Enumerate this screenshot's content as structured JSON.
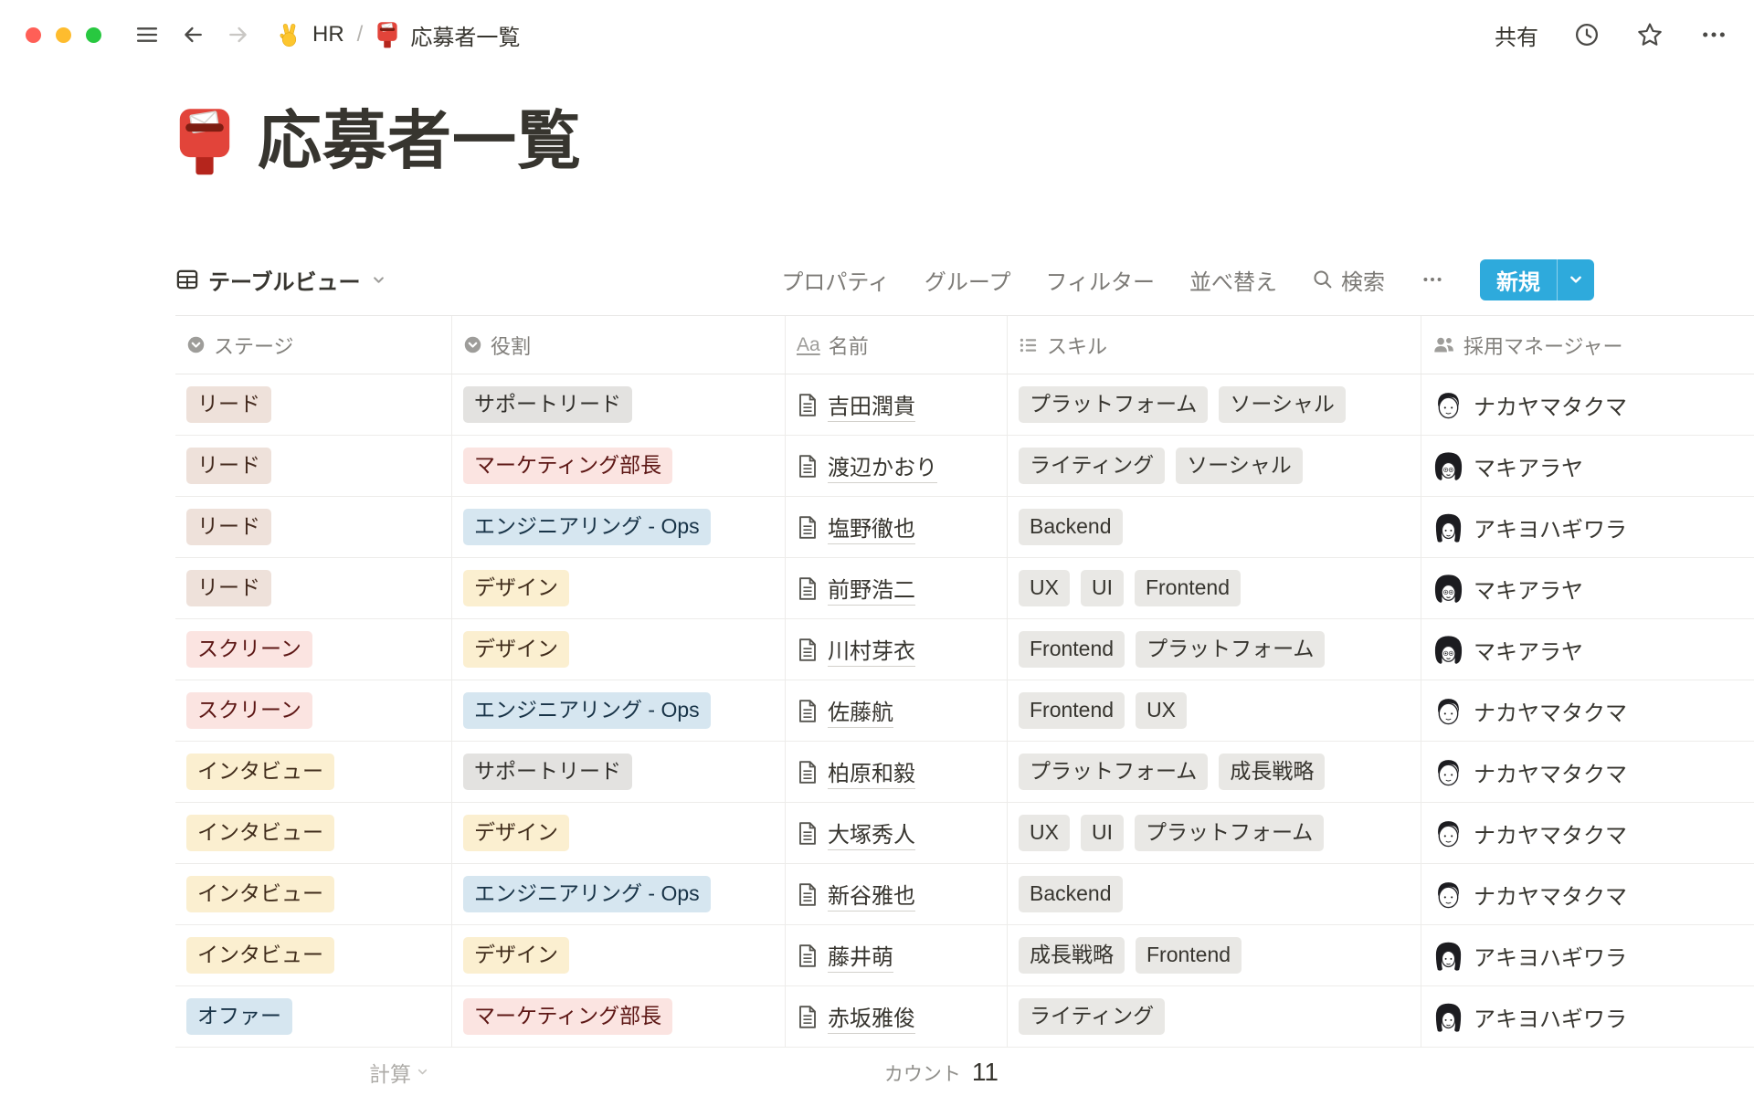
{
  "topbar": {
    "breadcrumb": {
      "workspace": "HR",
      "separator": "/",
      "page": "応募者一覧"
    },
    "share_label": "共有"
  },
  "page": {
    "title": "応募者一覧"
  },
  "toolbar": {
    "view_label": "テーブルビュー",
    "menu": [
      "プロパティ",
      "グループ",
      "フィルター",
      "並べ替え"
    ],
    "search_label": "検索",
    "new_label": "新規"
  },
  "table": {
    "columns": [
      {
        "label": "ステージ",
        "icon": "select-icon"
      },
      {
        "label": "役割",
        "icon": "select-icon"
      },
      {
        "label": "名前",
        "icon": "title-icon"
      },
      {
        "label": "スキル",
        "icon": "multi-select-icon"
      },
      {
        "label": "採用マネージャー",
        "icon": "people-icon"
      }
    ],
    "rows": [
      {
        "stage": {
          "label": "リード",
          "color": "brown"
        },
        "role": {
          "label": "サポートリード",
          "color": "gray"
        },
        "name": "吉田潤貴",
        "skills": [
          "プラットフォーム",
          "ソーシャル"
        ],
        "manager": {
          "name": "ナカヤマタクマ",
          "avatar": "takuma"
        }
      },
      {
        "stage": {
          "label": "リード",
          "color": "brown"
        },
        "role": {
          "label": "マーケティング部長",
          "color": "red"
        },
        "name": "渡辺かおり",
        "skills": [
          "ライティング",
          "ソーシャル"
        ],
        "manager": {
          "name": "マキアラヤ",
          "avatar": "araya"
        }
      },
      {
        "stage": {
          "label": "リード",
          "color": "brown"
        },
        "role": {
          "label": "エンジニアリング - Ops",
          "color": "blue"
        },
        "name": "塩野徹也",
        "skills": [
          "Backend"
        ],
        "manager": {
          "name": "アキヨハギワラ",
          "avatar": "hagiwara"
        }
      },
      {
        "stage": {
          "label": "リード",
          "color": "brown"
        },
        "role": {
          "label": "デザイン",
          "color": "yellow"
        },
        "name": "前野浩二",
        "skills": [
          "UX",
          "UI",
          "Frontend"
        ],
        "manager": {
          "name": "マキアラヤ",
          "avatar": "araya"
        }
      },
      {
        "stage": {
          "label": "スクリーン",
          "color": "red"
        },
        "role": {
          "label": "デザイン",
          "color": "yellow"
        },
        "name": "川村芽衣",
        "skills": [
          "Frontend",
          "プラットフォーム"
        ],
        "manager": {
          "name": "マキアラヤ",
          "avatar": "araya"
        }
      },
      {
        "stage": {
          "label": "スクリーン",
          "color": "red"
        },
        "role": {
          "label": "エンジニアリング - Ops",
          "color": "blue"
        },
        "name": "佐藤航",
        "skills": [
          "Frontend",
          "UX"
        ],
        "manager": {
          "name": "ナカヤマタクマ",
          "avatar": "takuma"
        }
      },
      {
        "stage": {
          "label": "インタビュー",
          "color": "yellow"
        },
        "role": {
          "label": "サポートリード",
          "color": "gray"
        },
        "name": "柏原和毅",
        "skills": [
          "プラットフォーム",
          "成長戦略"
        ],
        "manager": {
          "name": "ナカヤマタクマ",
          "avatar": "takuma"
        }
      },
      {
        "stage": {
          "label": "インタビュー",
          "color": "yellow"
        },
        "role": {
          "label": "デザイン",
          "color": "yellow"
        },
        "name": "大塚秀人",
        "skills": [
          "UX",
          "UI",
          "プラットフォーム"
        ],
        "manager": {
          "name": "ナカヤマタクマ",
          "avatar": "takuma"
        }
      },
      {
        "stage": {
          "label": "インタビュー",
          "color": "yellow"
        },
        "role": {
          "label": "エンジニアリング - Ops",
          "color": "blue"
        },
        "name": "新谷雅也",
        "skills": [
          "Backend"
        ],
        "manager": {
          "name": "ナカヤマタクマ",
          "avatar": "takuma"
        }
      },
      {
        "stage": {
          "label": "インタビュー",
          "color": "yellow"
        },
        "role": {
          "label": "デザイン",
          "color": "yellow"
        },
        "name": "藤井萌",
        "skills": [
          "成長戦略",
          "Frontend"
        ],
        "manager": {
          "name": "アキヨハギワラ",
          "avatar": "hagiwara"
        }
      },
      {
        "stage": {
          "label": "オファー",
          "color": "blue"
        },
        "role": {
          "label": "マーケティング部長",
          "color": "red"
        },
        "name": "赤坂雅俊",
        "skills": [
          "ライティング"
        ],
        "manager": {
          "name": "アキヨハギワラ",
          "avatar": "hagiwara"
        }
      }
    ],
    "footer": {
      "calc_label": "計算",
      "count_label": "カウント",
      "count_value": "11"
    }
  },
  "colors": {
    "accent": "#2EAADC",
    "traffic": [
      "#FF5F57",
      "#FEBC2E",
      "#28C840"
    ],
    "badge": {
      "brown": {
        "bg": "#EEE1DA",
        "text": "#442A1E"
      },
      "red": {
        "bg": "#FBE4E1",
        "text": "#5D1715"
      },
      "yellow": {
        "bg": "#FBEFD0",
        "text": "#402C1B"
      },
      "blue": {
        "bg": "#D6E6F0",
        "text": "#183347"
      },
      "gray": {
        "bg": "#E3E2E0",
        "text": "#32302C"
      }
    },
    "chip": {
      "bg": "#E9E8E5",
      "text": "#37352F"
    }
  }
}
